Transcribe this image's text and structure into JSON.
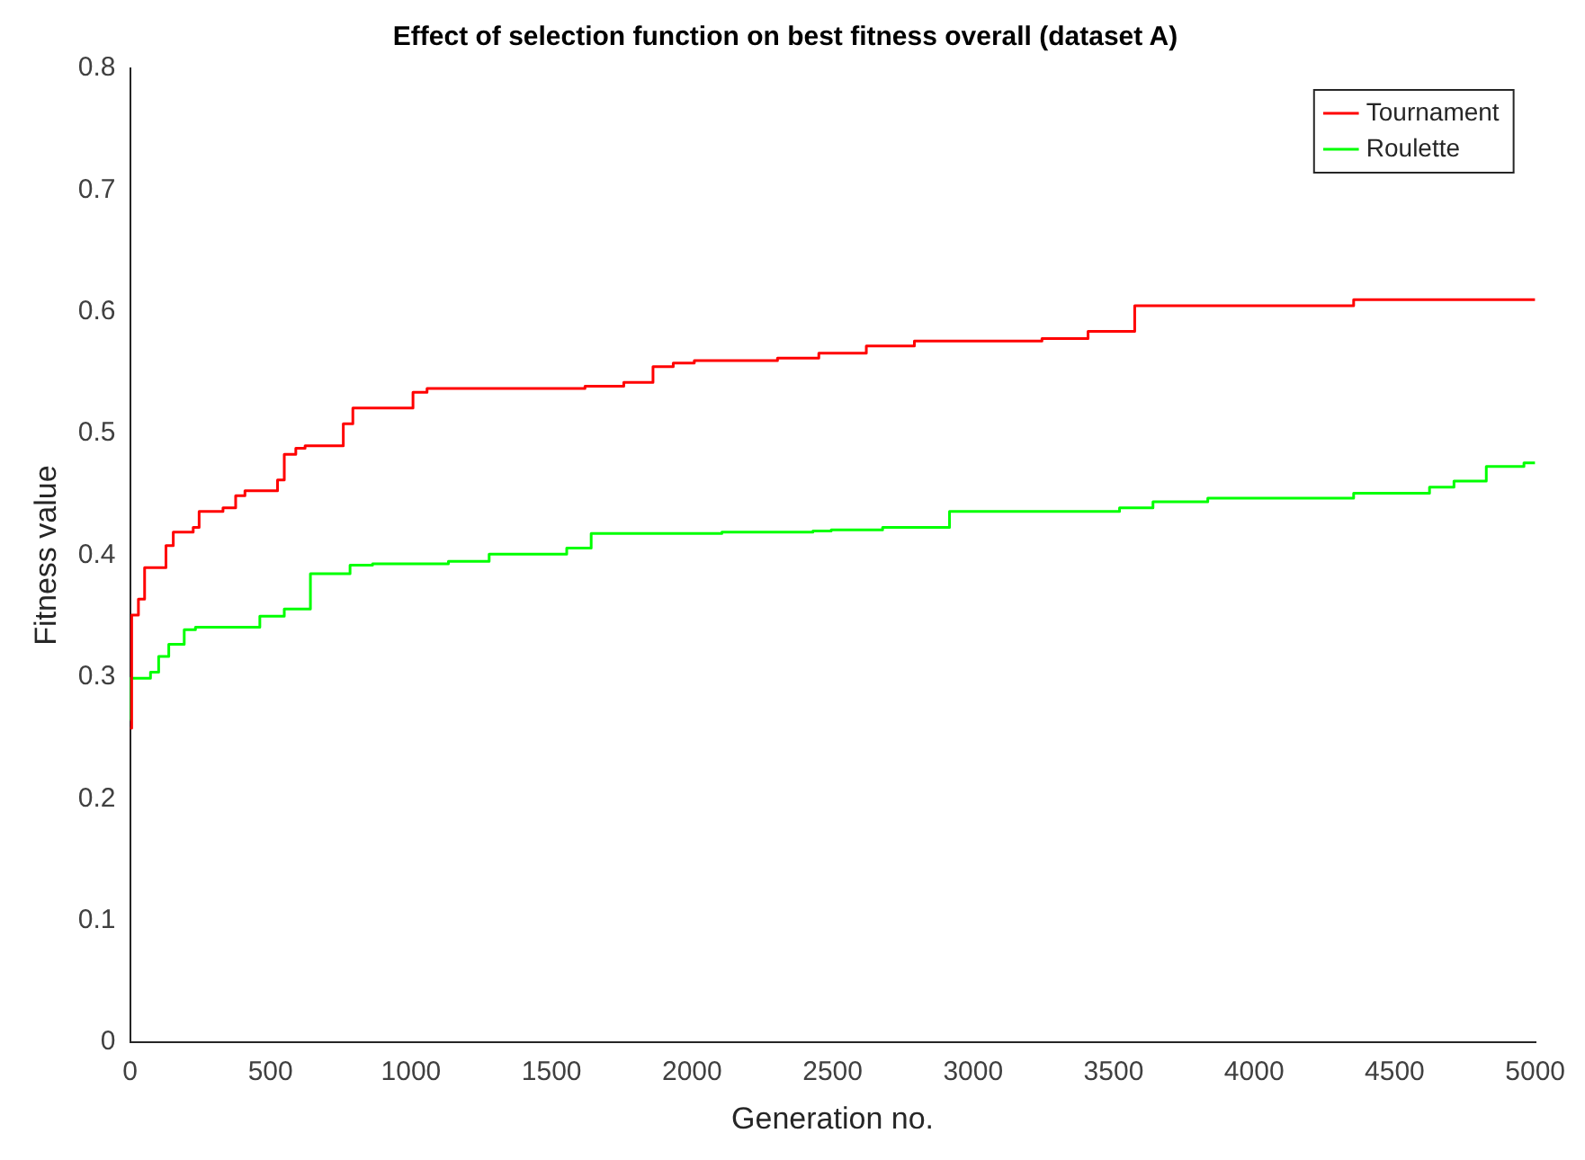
{
  "chart_data": {
    "type": "step",
    "title": "Effect of selection function on best fitness overall (dataset A)",
    "xlabel": "Generation no.",
    "ylabel": "Fitness value",
    "xlim": [
      0,
      5000
    ],
    "xticks": [
      0,
      500,
      1000,
      1500,
      2000,
      2500,
      3000,
      3500,
      4000,
      4500,
      5000
    ],
    "ylim": [
      0,
      0.8
    ],
    "yticks": [
      0,
      0.1,
      0.2,
      0.3,
      0.4,
      0.5,
      0.6,
      0.7,
      0.8
    ],
    "grid": false,
    "legend": "top right",
    "series": [
      {
        "name": "Tournament",
        "color": "#ff0000",
        "x": [
          0,
          6,
          30,
          52,
          128,
          154,
          225,
          246,
          331,
          376,
          409,
          525,
          549,
          590,
          623,
          759,
          793,
          1007,
          1057,
          1619,
          1757,
          1861,
          1933,
          2008,
          2304,
          2451,
          2620,
          2791,
          3245,
          3409,
          3575,
          4354,
          5000
        ],
        "values": [
          0.258,
          0.351,
          0.364,
          0.39,
          0.408,
          0.419,
          0.423,
          0.436,
          0.439,
          0.449,
          0.453,
          0.462,
          0.483,
          0.488,
          0.49,
          0.508,
          0.521,
          0.534,
          0.537,
          0.539,
          0.542,
          0.555,
          0.558,
          0.56,
          0.562,
          0.566,
          0.572,
          0.576,
          0.578,
          0.584,
          0.605,
          0.61,
          0.61
        ]
      },
      {
        "name": "Roulette",
        "color": "#00ff00",
        "x": [
          0,
          2,
          73,
          102,
          138,
          193,
          233,
          462,
          549,
          642,
          783,
          863,
          1133,
          1278,
          1554,
          1641,
          2106,
          2430,
          2495,
          2678,
          2916,
          3521,
          3640,
          3835,
          4354,
          4624,
          4711,
          4826,
          4960,
          5000
        ],
        "values": [
          0.265,
          0.299,
          0.304,
          0.317,
          0.327,
          0.339,
          0.341,
          0.35,
          0.356,
          0.385,
          0.392,
          0.393,
          0.395,
          0.401,
          0.406,
          0.418,
          0.419,
          0.42,
          0.421,
          0.423,
          0.436,
          0.439,
          0.444,
          0.447,
          0.451,
          0.456,
          0.461,
          0.473,
          0.476,
          0.476
        ]
      }
    ]
  }
}
